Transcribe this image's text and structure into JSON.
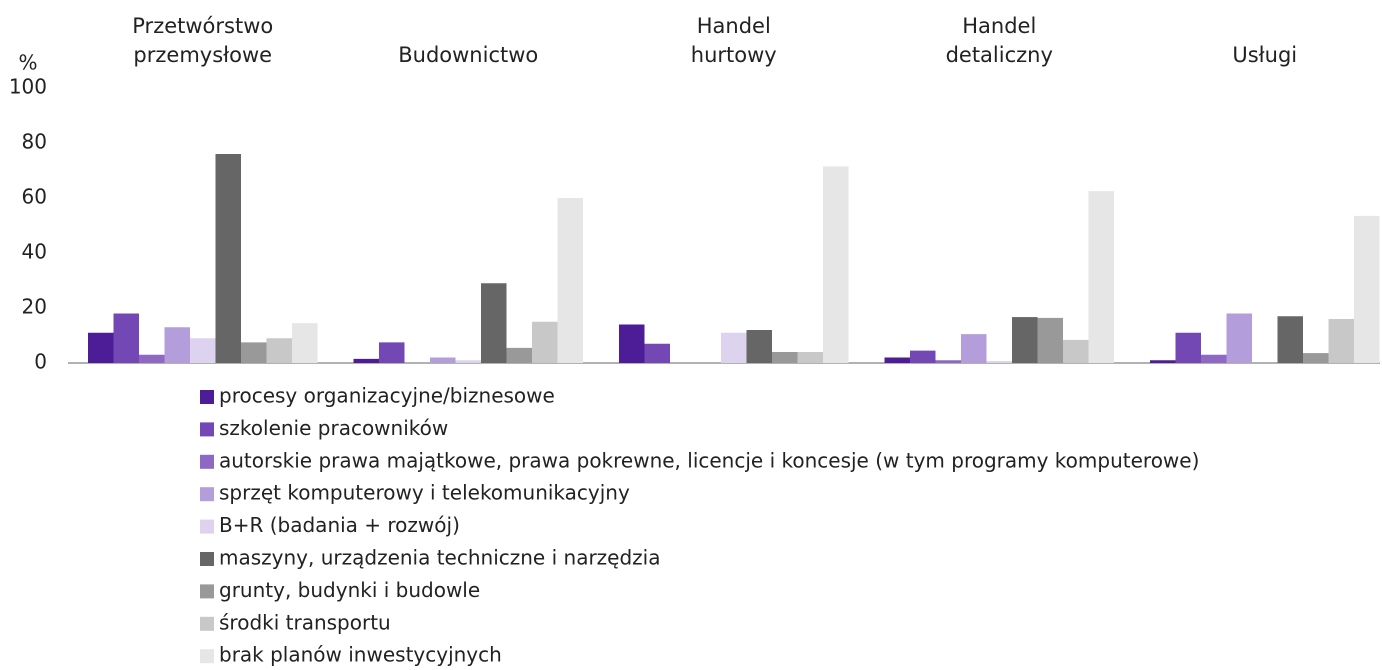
{
  "chart_data": {
    "type": "bar",
    "y_label": "%",
    "categories": [
      "Przetwórstwo\nprzemysłowe",
      "Budownictwo",
      "Handel\nhurtowy",
      "Handel\ndetaliczny",
      "Usługi"
    ],
    "series": [
      {
        "name": "procesy organizacyjne/biznesowe",
        "color": "#4d1d97",
        "values": [
          11,
          1.5,
          14,
          2,
          1
        ]
      },
      {
        "name": "szkolenie pracowników",
        "color": "#7348b4",
        "values": [
          18,
          7.5,
          7,
          4.5,
          11
        ]
      },
      {
        "name": "autorskie prawa majątkowe, prawa pokrewne, licencje i koncesje (w tym programy komputerowe)",
        "color": "#8e68c2",
        "values": [
          3,
          0,
          0,
          1,
          3
        ]
      },
      {
        "name": "sprzęt komputerowy i telekomunikacyjny",
        "color": "#b39ddb",
        "values": [
          13,
          2,
          0,
          10.5,
          18
        ]
      },
      {
        "name": "B+R (badania + rozwój)",
        "color": "#ddd3ef",
        "values": [
          9,
          1,
          11,
          0.7,
          0
        ]
      },
      {
        "name": "maszyny, urządzenia techniczne i narzędzia",
        "color": "#666666",
        "values": [
          76,
          29,
          12,
          16.7,
          17
        ]
      },
      {
        "name": "grunty, budynki i budowle",
        "color": "#999999",
        "values": [
          7.5,
          5.5,
          4,
          16.4,
          3.6
        ]
      },
      {
        "name": "środki transportu",
        "color": "#c8c8c8",
        "values": [
          9,
          15,
          4,
          8.4,
          16
        ]
      },
      {
        "name": "brak planów inwestycyjnych",
        "color": "#e6e6e6",
        "values": [
          14.5,
          60,
          71.5,
          62.5,
          53.5
        ]
      }
    ],
    "ylim": [
      0,
      100
    ],
    "yticks": [
      0,
      20,
      40,
      60,
      80,
      100
    ],
    "grid": false
  }
}
